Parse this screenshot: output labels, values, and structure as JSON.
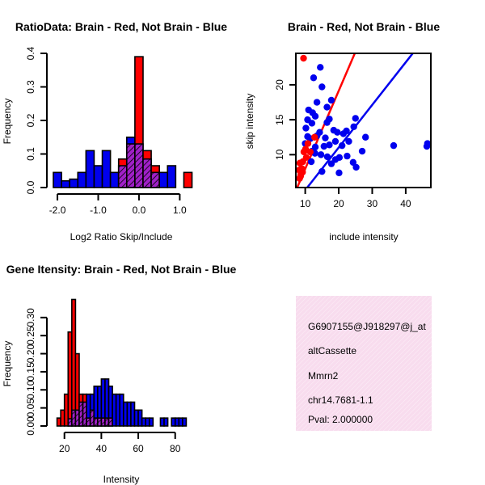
{
  "colors": {
    "brain": "#ff0000",
    "not_brain": "#0000ee",
    "overlap": "#a020c8",
    "info_bg": "#f8dcee",
    "pval": "#cc0000"
  },
  "chart_data": [
    {
      "id": "ratio",
      "type": "bar",
      "title": "RatioData: Brain - Red, Not Brain - Blue",
      "xlabel": "Log2 Ratio Skip/Include",
      "ylabel": "Frequency",
      "xlim": [
        -2.1,
        1.25
      ],
      "ylim": [
        0,
        0.4
      ],
      "xticks": [
        -2.0,
        -1.0,
        0.0,
        1.0
      ],
      "xtick_labels": [
        "-2.0",
        "-1.0",
        "0.0",
        "1.0"
      ],
      "yticks": [
        0,
        0.1,
        0.2,
        0.3,
        0.4
      ],
      "ytick_labels": [
        "0.0",
        "0.1",
        "0.2",
        "0.3",
        "0.4"
      ],
      "bin_edges": [
        -2.1,
        -1.9,
        -1.7,
        -1.5,
        -1.3,
        -1.1,
        -0.9,
        -0.7,
        -0.5,
        -0.3,
        -0.1,
        0.1,
        0.3,
        0.5,
        0.7,
        0.9,
        1.1,
        1.3
      ],
      "series": [
        {
          "name": "Brain",
          "values": [
            0,
            0,
            0,
            0,
            0,
            0,
            0,
            0,
            0.085,
            0.13,
            0.39,
            0.11,
            0.065,
            0,
            0,
            0,
            0.045
          ]
        },
        {
          "name": "Not Brain",
          "values": [
            0.045,
            0.02,
            0.025,
            0.045,
            0.11,
            0.065,
            0.11,
            0.045,
            0.065,
            0.15,
            0.13,
            0.085,
            0.045,
            0.045,
            0.065,
            0,
            0
          ]
        }
      ]
    },
    {
      "id": "scatter",
      "type": "scatter",
      "title": "Brain - Red, Not Brain - Blue",
      "xlabel": "include intensity",
      "ylabel": "skip intensity",
      "xlim": [
        7.2,
        47.5
      ],
      "ylim": [
        5.3,
        24.5
      ],
      "xticks": [
        10,
        20,
        30,
        40
      ],
      "xtick_labels": [
        "10",
        "20",
        "30",
        "40"
      ],
      "yticks": [
        10,
        15,
        20
      ],
      "ytick_labels": [
        "10",
        "15",
        "20"
      ],
      "series": [
        {
          "name": "Brain",
          "points": [
            [
              9.5,
              23.8
            ],
            [
              8.4,
              8.8
            ],
            [
              8.2,
              7.8
            ],
            [
              8.7,
              7.2
            ],
            [
              9.3,
              9.0
            ],
            [
              9.0,
              8.0
            ],
            [
              10.1,
              10.8
            ],
            [
              9.2,
              7.5
            ],
            [
              8.6,
              6.9
            ],
            [
              9.6,
              10.4
            ],
            [
              10.3,
              9.6
            ],
            [
              12.8,
              12.5
            ],
            [
              10.8,
              11.6
            ],
            [
              11.5,
              10.4
            ],
            [
              8.3,
              6.6
            ]
          ]
        },
        {
          "name": "Not Brain",
          "points": [
            [
              12.5,
              21.0
            ],
            [
              14.5,
              22.5
            ],
            [
              15.0,
              19.7
            ],
            [
              13.5,
              17.5
            ],
            [
              17.8,
              17.8
            ],
            [
              11.0,
              16.4
            ],
            [
              12.2,
              16.0
            ],
            [
              16.5,
              16.8
            ],
            [
              13.0,
              15.5
            ],
            [
              10.7,
              15.0
            ],
            [
              17.2,
              15.1
            ],
            [
              25.0,
              15.2
            ],
            [
              12.0,
              14.5
            ],
            [
              16.5,
              14.6
            ],
            [
              22.3,
              13.4
            ],
            [
              10.2,
              13.8
            ],
            [
              14.3,
              13.2
            ],
            [
              19.6,
              13.2
            ],
            [
              24.5,
              14.0
            ],
            [
              21.4,
              13.0
            ],
            [
              11.5,
              12.3
            ],
            [
              13.5,
              12.7
            ],
            [
              16.0,
              12.4
            ],
            [
              19.0,
              11.9
            ],
            [
              23.0,
              11.9
            ],
            [
              28.0,
              12.5
            ],
            [
              10.0,
              11.6
            ],
            [
              13.0,
              11.1
            ],
            [
              15.6,
              11.2
            ],
            [
              17.2,
              11.4
            ],
            [
              21.0,
              11.3
            ],
            [
              36.4,
              11.3
            ],
            [
              46.5,
              11.6
            ],
            [
              12.0,
              10.5
            ],
            [
              14.7,
              10.0
            ],
            [
              16.6,
              9.7
            ],
            [
              19.0,
              9.3
            ],
            [
              22.5,
              9.8
            ],
            [
              27.0,
              10.5
            ],
            [
              46.3,
              11.2
            ],
            [
              11.8,
              9.0
            ],
            [
              17.8,
              8.7
            ],
            [
              20.2,
              9.6
            ],
            [
              24.3,
              8.9
            ],
            [
              15.0,
              7.6
            ],
            [
              20.1,
              7.4
            ],
            [
              25.2,
              8.2
            ],
            [
              10.7,
              12.6
            ],
            [
              12.9,
              10.2
            ],
            [
              18.5,
              13.5
            ]
          ]
        }
      ],
      "fit_lines": [
        {
          "name": "Brain",
          "points": [
            [
              7.6,
              5.3
            ],
            [
              24.8,
              24.5
            ]
          ]
        },
        {
          "name": "Not Brain",
          "points": [
            [
              10.6,
              5.3
            ],
            [
              42.1,
              24.5
            ]
          ]
        }
      ]
    },
    {
      "id": "intensity",
      "type": "bar",
      "title": "Gene Itensity: Brain - Red, Not Brain - Blue",
      "xlabel": "Intensity",
      "ylabel": "Frequency",
      "xlim": [
        14,
        88
      ],
      "ylim": [
        0,
        0.36
      ],
      "xticks": [
        20,
        40,
        60,
        80
      ],
      "xtick_labels": [
        "20",
        "40",
        "60",
        "80"
      ],
      "yticks": [
        0,
        0.05,
        0.1,
        0.15,
        0.2,
        0.25,
        0.3
      ],
      "ytick_labels": [
        "0.00",
        "0.05",
        "0.10",
        "0.15",
        "0.20",
        "0.25",
        "0.30"
      ],
      "bin_edges": [
        16,
        18,
        20,
        22,
        24,
        26,
        28,
        30,
        32,
        34,
        36,
        38,
        40,
        42,
        44,
        46,
        48,
        50,
        52,
        54,
        56,
        58,
        60,
        62,
        64,
        66,
        68,
        70,
        72,
        74,
        76,
        78,
        80,
        82,
        84,
        86
      ],
      "series": [
        {
          "name": "Brain",
          "values": [
            0.022,
            0.044,
            0.088,
            0.26,
            0.35,
            0.2,
            0.088,
            0.088,
            0.022,
            0.044,
            0.022,
            0.022,
            0.022,
            0.022,
            0.022,
            0,
            0,
            0,
            0,
            0,
            0,
            0,
            0,
            0,
            0,
            0,
            0,
            0,
            0,
            0,
            0,
            0,
            0,
            0,
            0
          ]
        },
        {
          "name": "Not Brain",
          "values": [
            0,
            0,
            0,
            0.02,
            0.044,
            0.044,
            0.066,
            0.066,
            0.088,
            0.088,
            0.11,
            0.11,
            0.13,
            0.13,
            0.11,
            0.088,
            0.088,
            0.088,
            0.066,
            0.066,
            0.066,
            0.044,
            0.044,
            0.022,
            0.022,
            0.022,
            0,
            0,
            0.022,
            0.022,
            0,
            0.022,
            0.022,
            0.022,
            0.022
          ]
        }
      ]
    }
  ],
  "info": {
    "probe_id": "G6907155@J918297@j_at",
    "event_type": "altCassette",
    "gene": "Mmrn2",
    "location": "chr14.7681-1.1",
    "pval": "Pval: 2.000000"
  }
}
